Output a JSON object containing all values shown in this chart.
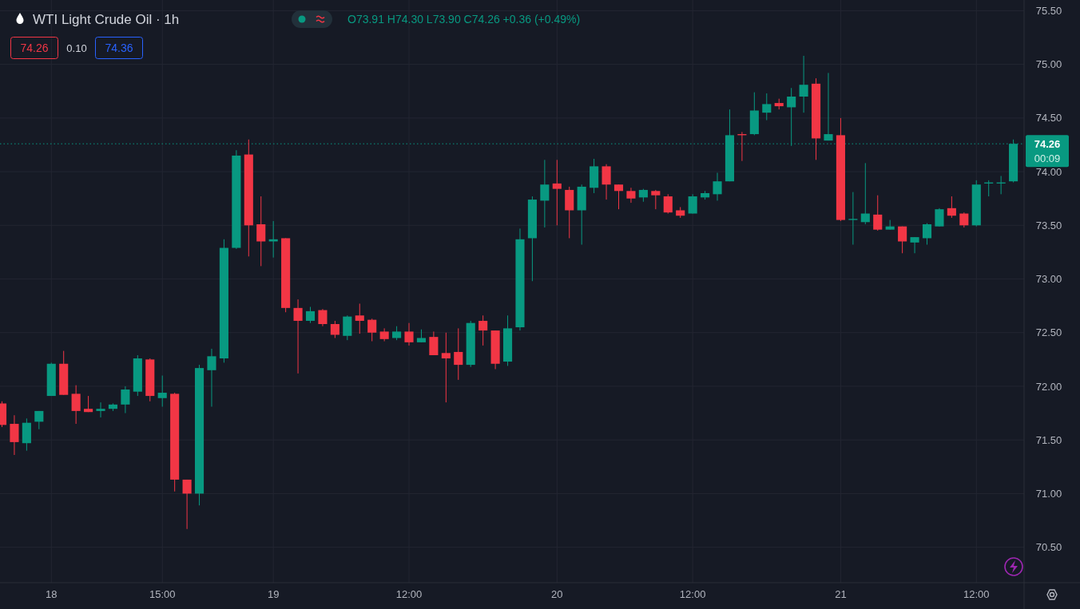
{
  "chart_data": {
    "type": "candlestick",
    "title": "WTI Light Crude Oil · 1h",
    "categories": [
      null,
      null,
      null,
      null,
      "18",
      null,
      null,
      null,
      null,
      null,
      null,
      null,
      null,
      "15:00",
      null,
      null,
      null,
      null,
      null,
      null,
      null,
      null,
      "19",
      null,
      null,
      null,
      null,
      null,
      null,
      null,
      null,
      null,
      null,
      "12:00",
      null,
      null,
      null,
      null,
      null,
      null,
      null,
      null,
      null,
      null,
      null,
      "20",
      null,
      null,
      null,
      null,
      null,
      null,
      null,
      null,
      null,
      null,
      "12:00",
      null,
      null,
      null,
      null,
      null,
      null,
      null,
      null,
      null,
      null,
      null,
      "21",
      null,
      null,
      null,
      null,
      null,
      null,
      null,
      null,
      null,
      null,
      "12:00",
      null,
      null,
      null
    ],
    "ohlc": [
      [
        71.84,
        71.86,
        71.62,
        71.64
      ],
      [
        71.65,
        71.73,
        71.36,
        71.48
      ],
      [
        71.47,
        71.7,
        71.4,
        71.66
      ],
      [
        71.67,
        71.77,
        71.6,
        71.77
      ],
      [
        71.91,
        72.22,
        71.91,
        72.21
      ],
      [
        72.21,
        72.33,
        71.92,
        71.92
      ],
      [
        71.93,
        72.01,
        71.65,
        71.77
      ],
      [
        71.79,
        71.91,
        71.76,
        71.76
      ],
      [
        71.77,
        71.85,
        71.71,
        71.79
      ],
      [
        71.79,
        71.84,
        71.77,
        71.83
      ],
      [
        71.83,
        72.0,
        71.75,
        71.97
      ],
      [
        71.95,
        72.29,
        71.91,
        72.26
      ],
      [
        72.25,
        72.26,
        71.86,
        71.91
      ],
      [
        71.89,
        72.1,
        71.81,
        71.94
      ],
      [
        71.93,
        71.94,
        71.02,
        71.13
      ],
      [
        71.13,
        71.13,
        70.67,
        71.0
      ],
      [
        71.0,
        72.2,
        70.89,
        72.17
      ],
      [
        72.15,
        72.35,
        71.81,
        72.28
      ],
      [
        72.26,
        73.37,
        72.22,
        73.29
      ],
      [
        73.29,
        74.2,
        73.28,
        74.15
      ],
      [
        74.16,
        74.3,
        73.21,
        73.5
      ],
      [
        73.51,
        73.77,
        73.12,
        73.35
      ],
      [
        73.35,
        73.54,
        73.2,
        73.37
      ],
      [
        73.38,
        73.38,
        72.69,
        72.73
      ],
      [
        72.73,
        72.81,
        72.12,
        72.61
      ],
      [
        72.61,
        72.74,
        72.59,
        72.7
      ],
      [
        72.71,
        72.72,
        72.56,
        72.58
      ],
      [
        72.58,
        72.61,
        72.45,
        72.48
      ],
      [
        72.47,
        72.66,
        72.43,
        72.65
      ],
      [
        72.66,
        72.77,
        72.49,
        72.61
      ],
      [
        72.62,
        72.63,
        72.42,
        72.5
      ],
      [
        72.51,
        72.54,
        72.42,
        72.44
      ],
      [
        72.45,
        72.56,
        72.43,
        72.51
      ],
      [
        72.51,
        72.59,
        72.38,
        72.41
      ],
      [
        72.41,
        72.53,
        72.41,
        72.45
      ],
      [
        72.46,
        72.51,
        72.29,
        72.29
      ],
      [
        72.31,
        72.5,
        71.85,
        72.26
      ],
      [
        72.32,
        72.54,
        72.06,
        72.2
      ],
      [
        72.2,
        72.61,
        72.18,
        72.59
      ],
      [
        72.61,
        72.66,
        72.38,
        72.52
      ],
      [
        72.52,
        72.52,
        72.16,
        72.21
      ],
      [
        72.23,
        72.66,
        72.19,
        72.54
      ],
      [
        72.55,
        73.47,
        72.52,
        73.37
      ],
      [
        73.38,
        73.77,
        72.98,
        73.74
      ],
      [
        73.73,
        74.11,
        73.48,
        73.88
      ],
      [
        73.89,
        74.11,
        73.5,
        73.84
      ],
      [
        73.83,
        73.86,
        73.38,
        73.64
      ],
      [
        73.64,
        73.88,
        73.32,
        73.86
      ],
      [
        73.85,
        74.12,
        73.8,
        74.05
      ],
      [
        74.05,
        74.07,
        73.74,
        73.88
      ],
      [
        73.88,
        73.88,
        73.65,
        73.82
      ],
      [
        73.82,
        73.85,
        73.71,
        73.75
      ],
      [
        73.76,
        73.84,
        73.72,
        73.83
      ],
      [
        73.82,
        73.83,
        73.65,
        73.78
      ],
      [
        73.77,
        73.79,
        73.61,
        73.62
      ],
      [
        73.64,
        73.67,
        73.57,
        73.59
      ],
      [
        73.61,
        73.79,
        73.61,
        73.77
      ],
      [
        73.76,
        73.82,
        73.74,
        73.8
      ],
      [
        73.79,
        73.99,
        73.73,
        73.91
      ],
      [
        73.91,
        74.58,
        73.91,
        74.34
      ],
      [
        74.35,
        74.37,
        74.1,
        74.34
      ],
      [
        74.35,
        74.74,
        74.34,
        74.57
      ],
      [
        74.55,
        74.73,
        74.48,
        74.63
      ],
      [
        74.64,
        74.68,
        74.58,
        74.61
      ],
      [
        74.6,
        74.78,
        74.24,
        74.7
      ],
      [
        74.7,
        75.08,
        74.55,
        74.81
      ],
      [
        74.82,
        74.87,
        74.11,
        74.31
      ],
      [
        74.29,
        74.92,
        74.29,
        74.35
      ],
      [
        74.34,
        74.5,
        73.54,
        73.55
      ],
      [
        73.55,
        73.81,
        73.32,
        73.56
      ],
      [
        73.53,
        74.08,
        73.51,
        73.61
      ],
      [
        73.6,
        73.78,
        73.45,
        73.46
      ],
      [
        73.46,
        73.55,
        73.46,
        73.49
      ],
      [
        73.49,
        73.49,
        73.24,
        73.35
      ],
      [
        73.34,
        73.39,
        73.24,
        73.39
      ],
      [
        73.38,
        73.52,
        73.32,
        73.51
      ],
      [
        73.49,
        73.66,
        73.49,
        73.65
      ],
      [
        73.66,
        73.77,
        73.57,
        73.59
      ],
      [
        73.61,
        73.62,
        73.48,
        73.5
      ],
      [
        73.5,
        73.92,
        73.49,
        73.88
      ],
      [
        73.89,
        73.92,
        73.77,
        73.9
      ],
      [
        73.89,
        73.96,
        73.79,
        73.9
      ],
      [
        73.91,
        74.3,
        73.9,
        74.26
      ]
    ],
    "colors": [
      "#f23645",
      "#f23645",
      "#089981",
      "#089981",
      "#089981",
      "#f23645",
      "#f23645",
      "#f23645",
      "#089981",
      "#089981",
      "#089981",
      "#089981",
      "#f23645",
      "#089981",
      "#f23645",
      "#f23645",
      "#089981",
      "#089981",
      "#089981",
      "#089981",
      "#f23645",
      "#f23645",
      "#089981",
      "#f23645",
      "#f23645",
      "#089981",
      "#f23645",
      "#f23645",
      "#089981",
      "#f23645",
      "#f23645",
      "#f23645",
      "#089981",
      "#f23645",
      "#089981",
      "#f23645",
      "#f23645",
      "#f23645",
      "#089981",
      "#f23645",
      "#f23645",
      "#089981",
      "#089981",
      "#089981",
      "#089981",
      "#f23645",
      "#f23645",
      "#089981",
      "#089981",
      "#f23645",
      "#f23645",
      "#f23645",
      "#089981",
      "#f23645",
      "#f23645",
      "#f23645",
      "#089981",
      "#089981",
      "#089981",
      "#089981",
      "#f23645",
      "#089981",
      "#089981",
      "#f23645",
      "#089981",
      "#089981",
      "#f23645",
      "#089981",
      "#f23645",
      "#089981",
      "#089981",
      "#f23645",
      "#089981",
      "#f23645",
      "#089981",
      "#089981",
      "#089981",
      "#f23645",
      "#f23645",
      "#089981",
      "#089981",
      "#089981",
      "#089981"
    ],
    "ylim": [
      70.17,
      75.6
    ],
    "yticks": [
      {
        "value": 70.5,
        "label": "70.50"
      },
      {
        "value": 71,
        "label": "71.00"
      },
      {
        "value": 71.5,
        "label": "71.50"
      },
      {
        "value": 72,
        "label": "72.00"
      },
      {
        "value": 72.5,
        "label": "72.50"
      },
      {
        "value": 73,
        "label": "73.00"
      },
      {
        "value": 73.5,
        "label": "73.50"
      },
      {
        "value": 74,
        "label": "74.00"
      },
      {
        "value": 74.5,
        "label": "74.50"
      },
      {
        "value": 75,
        "label": "75.00"
      },
      {
        "value": 75.5,
        "label": "75.50"
      }
    ],
    "grid": true,
    "ref_lines": [
      {
        "axis": "y",
        "value": 74.26,
        "label": "74.26",
        "color": "#089981",
        "line_style": "dotted"
      }
    ],
    "annotations": [
      "O73.91 H74.30 L73.90 C74.26 +0.36 (+0.49%)",
      "74.26",
      "0.10",
      "74.36",
      "00:09"
    ]
  }
}
